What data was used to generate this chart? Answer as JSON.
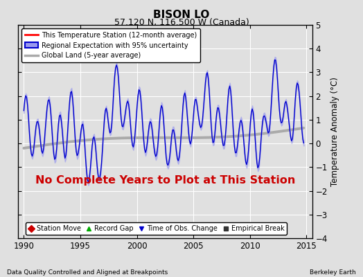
{
  "title": "BISON LO",
  "subtitle": "57.120 N, 116.500 W (Canada)",
  "ylabel": "Temperature Anomaly (°C)",
  "xlim": [
    1989.5,
    2015.5
  ],
  "ylim": [
    -4,
    5
  ],
  "yticks": [
    -4,
    -3,
    -2,
    -1,
    0,
    1,
    2,
    3,
    4,
    5
  ],
  "xticks": [
    1990,
    1995,
    2000,
    2005,
    2010,
    2015
  ],
  "background_color": "#e0e0e0",
  "plot_bg_color": "#e0e0e0",
  "regional_color": "#0000cc",
  "regional_fill_color": "#9999ee",
  "global_color": "#aaaaaa",
  "annotation_text": "No Complete Years to Plot at This Station",
  "annotation_color": "#cc0000",
  "footer_left": "Data Quality Controlled and Aligned at Breakpoints",
  "footer_right": "Berkeley Earth",
  "legend_entries": [
    {
      "label": "This Temperature Station (12-month average)",
      "color": "#ff0000",
      "lw": 2
    },
    {
      "label": "Regional Expectation with 95% uncertainty",
      "color": "#0000cc",
      "lw": 1.5
    },
    {
      "label": "Global Land (5-year average)",
      "color": "#aaaaaa",
      "lw": 2.5
    }
  ],
  "marker_legend": [
    {
      "label": "Station Move",
      "color": "#cc0000",
      "marker": "D"
    },
    {
      "label": "Record Gap",
      "color": "#00aa00",
      "marker": "^"
    },
    {
      "label": "Time of Obs. Change",
      "color": "#0000cc",
      "marker": "v"
    },
    {
      "label": "Empirical Break",
      "color": "#333333",
      "marker": "s"
    }
  ]
}
